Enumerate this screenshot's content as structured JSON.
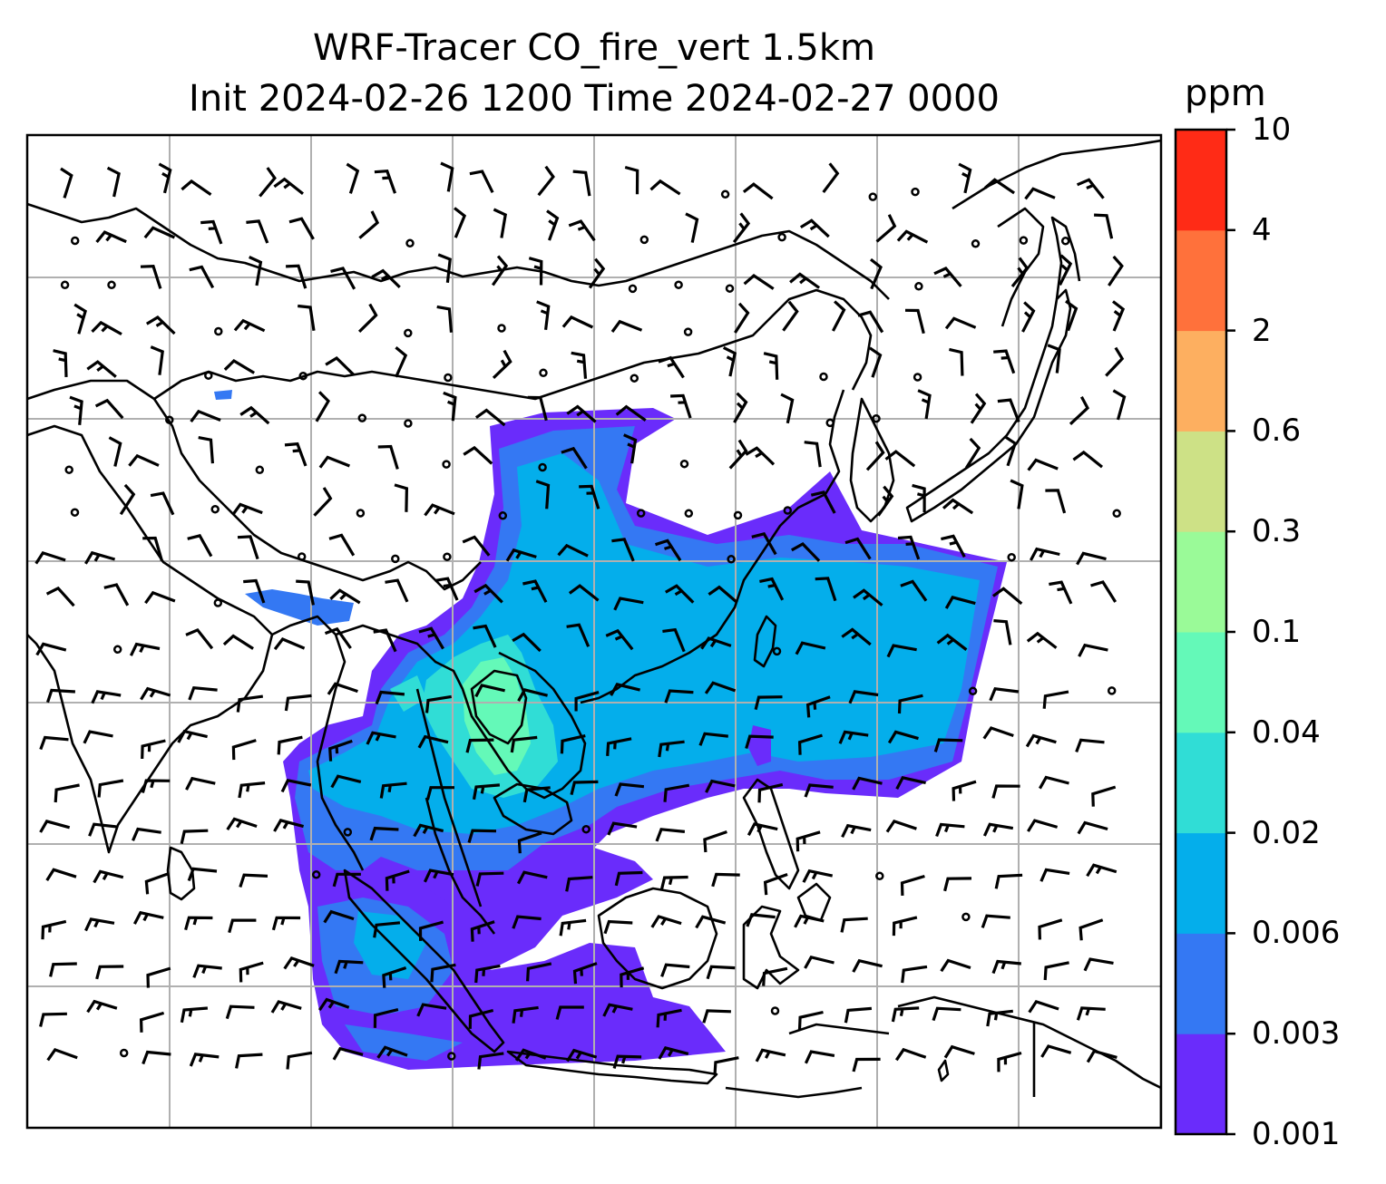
{
  "title": {
    "line1": "WRF-Tracer CO_fire_vert 1.5km",
    "line2": "Init 2024-02-26 1200 Time 2024-02-27 0000"
  },
  "colorbar": {
    "unit": "ppm",
    "levels": [
      "0.001",
      "0.003",
      "0.006",
      "0.02",
      "0.04",
      "0.1",
      "0.3",
      "0.6",
      "2",
      "4",
      "10"
    ],
    "colors": [
      "#6a2cfb",
      "#3478f3",
      "#04aeeb",
      "#30ddd6",
      "#64f9b8",
      "#9afa98",
      "#cde186",
      "#fdaf60",
      "#ff713b",
      "#ff2b16"
    ]
  },
  "map": {
    "background": "#ffffff",
    "gridline_color": "#b0b0b0",
    "coastline_color": "#000000",
    "icons": [
      "wind-barb-icon",
      "calm-wind-circle-icon"
    ]
  }
}
